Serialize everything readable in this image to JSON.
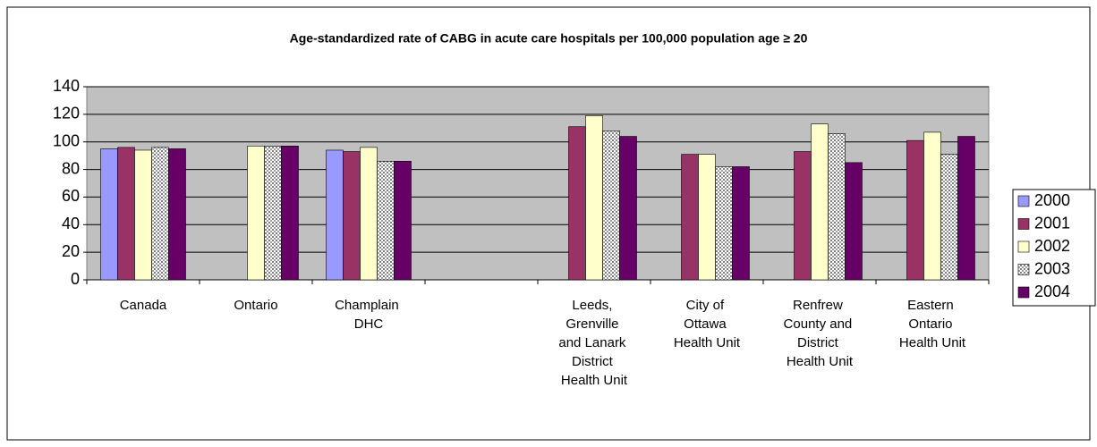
{
  "chart_data": {
    "type": "bar",
    "title": "Age-standardized rate of CABG in acute care hospitals per 100,000 population age ≥ 20",
    "categories": [
      "Canada",
      "Ontario",
      "Champlain DHC",
      null,
      "Leeds, Grenville and Lanark District Health Unit",
      "City of Ottawa Health Unit",
      "Renfrew County and District Health Unit",
      "Eastern Ontario Health Unit"
    ],
    "series": [
      {
        "name": "2000",
        "color": "#9999ff",
        "values": [
          95,
          null,
          94,
          null,
          null,
          null,
          null,
          null
        ]
      },
      {
        "name": "2001",
        "color": "#993366",
        "values": [
          96,
          null,
          93,
          null,
          111,
          91,
          93,
          101
        ]
      },
      {
        "name": "2002",
        "color": "#ffffcc",
        "values": [
          94,
          97,
          96,
          null,
          119,
          91,
          113,
          107
        ]
      },
      {
        "name": "2003",
        "color": "#c0c0c0",
        "pattern": "dots",
        "values": [
          96,
          97,
          86,
          null,
          108,
          82,
          106,
          91
        ]
      },
      {
        "name": "2004",
        "color": "#660066",
        "values": [
          95,
          97,
          86,
          null,
          104,
          82,
          85,
          104
        ]
      }
    ],
    "ylim": [
      0,
      140
    ],
    "yticks": [
      0,
      20,
      40,
      60,
      80,
      100,
      120,
      140
    ],
    "grid": true,
    "legend": "right"
  }
}
